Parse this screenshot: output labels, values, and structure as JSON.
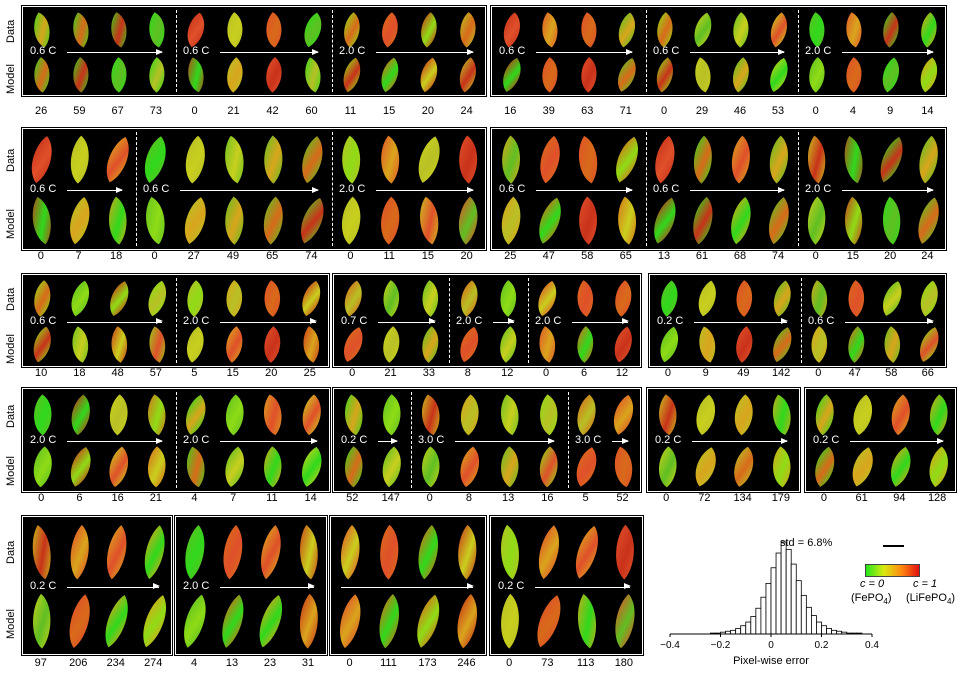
{
  "row_labels": {
    "top": "Data",
    "bottom": "Model"
  },
  "rows": [
    {
      "panels": [
        {
          "subs": [
            {
              "rate": "0.6 C",
              "times": [
                "26",
                "59",
                "67",
                "73"
              ]
            },
            {
              "rate": "0.6 C",
              "times": [
                "0",
                "21",
                "42",
                "60"
              ]
            },
            {
              "rate": "2.0 C",
              "times": [
                "11",
                "15",
                "20",
                "24"
              ]
            }
          ]
        },
        {
          "subs": [
            {
              "rate": "0.6 C",
              "times": [
                "16",
                "39",
                "63",
                "71"
              ]
            },
            {
              "rate": "0.6 C",
              "times": [
                "0",
                "29",
                "46",
                "53"
              ]
            },
            {
              "rate": "2.0 C",
              "times": [
                "0",
                "4",
                "9",
                "14"
              ]
            }
          ]
        }
      ]
    },
    {
      "panels": [
        {
          "subs": [
            {
              "rate": "0.6 C",
              "times": [
                "0",
                "7",
                "18"
              ]
            },
            {
              "rate": "0.6 C",
              "times": [
                "0",
                "27",
                "49",
                "65",
                "74"
              ]
            },
            {
              "rate": "2.0 C",
              "times": [
                "0",
                "11",
                "15",
                "20"
              ]
            }
          ]
        },
        {
          "subs": [
            {
              "rate": "0.6 C",
              "times": [
                "25",
                "47",
                "58",
                "65"
              ]
            },
            {
              "rate": "0.6 C",
              "times": [
                "13",
                "61",
                "68",
                "74"
              ]
            },
            {
              "rate": "2.0 C",
              "times": [
                "0",
                "15",
                "20",
                "24"
              ]
            }
          ]
        }
      ]
    },
    {
      "panels": [
        {
          "subs": [
            {
              "rate": "0.6 C",
              "times": [
                "10",
                "18",
                "48",
                "57"
              ]
            },
            {
              "rate": "2.0 C",
              "times": [
                "5",
                "15",
                "20",
                "25"
              ]
            }
          ]
        },
        {
          "subs": [
            {
              "rate": "0.7 C",
              "times": [
                "0",
                "21",
                "33"
              ]
            },
            {
              "rate": "2.0 C",
              "times": [
                "8",
                "12"
              ]
            },
            {
              "rate": "2.0 C",
              "times": [
                "0",
                "6",
                "12"
              ]
            }
          ]
        },
        {
          "subs": [
            {
              "rate": "0.2 C",
              "times": [
                "0",
                "9",
                "49",
                "142"
              ]
            },
            {
              "rate": "0.6 C",
              "times": [
                "0",
                "47",
                "58",
                "66"
              ]
            }
          ]
        }
      ]
    },
    {
      "panels": [
        {
          "subs": [
            {
              "rate": "2.0 C",
              "times": [
                "0",
                "6",
                "16",
                "21"
              ]
            },
            {
              "rate": "2.0 C",
              "times": [
                "4",
                "7",
                "11",
                "14"
              ]
            }
          ]
        },
        {
          "subs": [
            {
              "rate": "0.2 C",
              "times": [
                "52",
                "147"
              ]
            },
            {
              "rate": "3.0 C",
              "times": [
                "0",
                "8",
                "13",
                "16"
              ]
            },
            {
              "rate": "3.0 C",
              "times": [
                "5",
                "52"
              ]
            }
          ]
        },
        {
          "subs": [
            {
              "rate": "0.2 C",
              "times": [
                "0",
                "72",
                "134",
                "179"
              ]
            }
          ]
        },
        {
          "subs": [
            {
              "rate": "0.2 C",
              "times": [
                "0",
                "61",
                "94",
                "128"
              ]
            }
          ]
        }
      ]
    },
    {
      "panels": [
        {
          "subs": [
            {
              "rate": "0.2 C",
              "times": [
                "97",
                "206",
                "234",
                "274"
              ]
            }
          ]
        },
        {
          "subs": [
            {
              "rate": "2.0 C",
              "times": [
                "4",
                "13",
                "23",
                "31"
              ]
            }
          ]
        },
        {
          "subs": [
            {
              "rate": "",
              "times": [
                "0",
                "111",
                "173",
                "246"
              ]
            }
          ]
        },
        {
          "subs": [
            {
              "rate": "0.2 C",
              "times": [
                "0",
                "73",
                "113",
                "180"
              ]
            }
          ]
        }
      ]
    }
  ],
  "histogram": {
    "std_label": "std = 6.8%",
    "xlabel": "Pixel-wise error",
    "ticks": [
      "−0.4",
      "−0.2",
      "0",
      "0.2",
      "0.4"
    ],
    "xlim": [
      -0.4,
      0.4
    ],
    "bin_width": 0.02,
    "counts": [
      0,
      0,
      0,
      0,
      0,
      0,
      0,
      0,
      1,
      1,
      2,
      3,
      4,
      6,
      9,
      13,
      19,
      28,
      40,
      55,
      72,
      88,
      100,
      92,
      76,
      58,
      42,
      29,
      20,
      13,
      9,
      6,
      4,
      3,
      2,
      1,
      1,
      1,
      0,
      0
    ]
  },
  "colorbar": {
    "left_label": "c = 0",
    "left_sub": "(FePO",
    "left_sub_idx": "4",
    "right_label": "c = 1",
    "right_sub": "(LiFePO",
    "right_sub_idx": "4",
    "close_paren": ")",
    "colors": [
      "#23e61c",
      "#d8ea10",
      "#ff8a10",
      "#e31010"
    ]
  }
}
